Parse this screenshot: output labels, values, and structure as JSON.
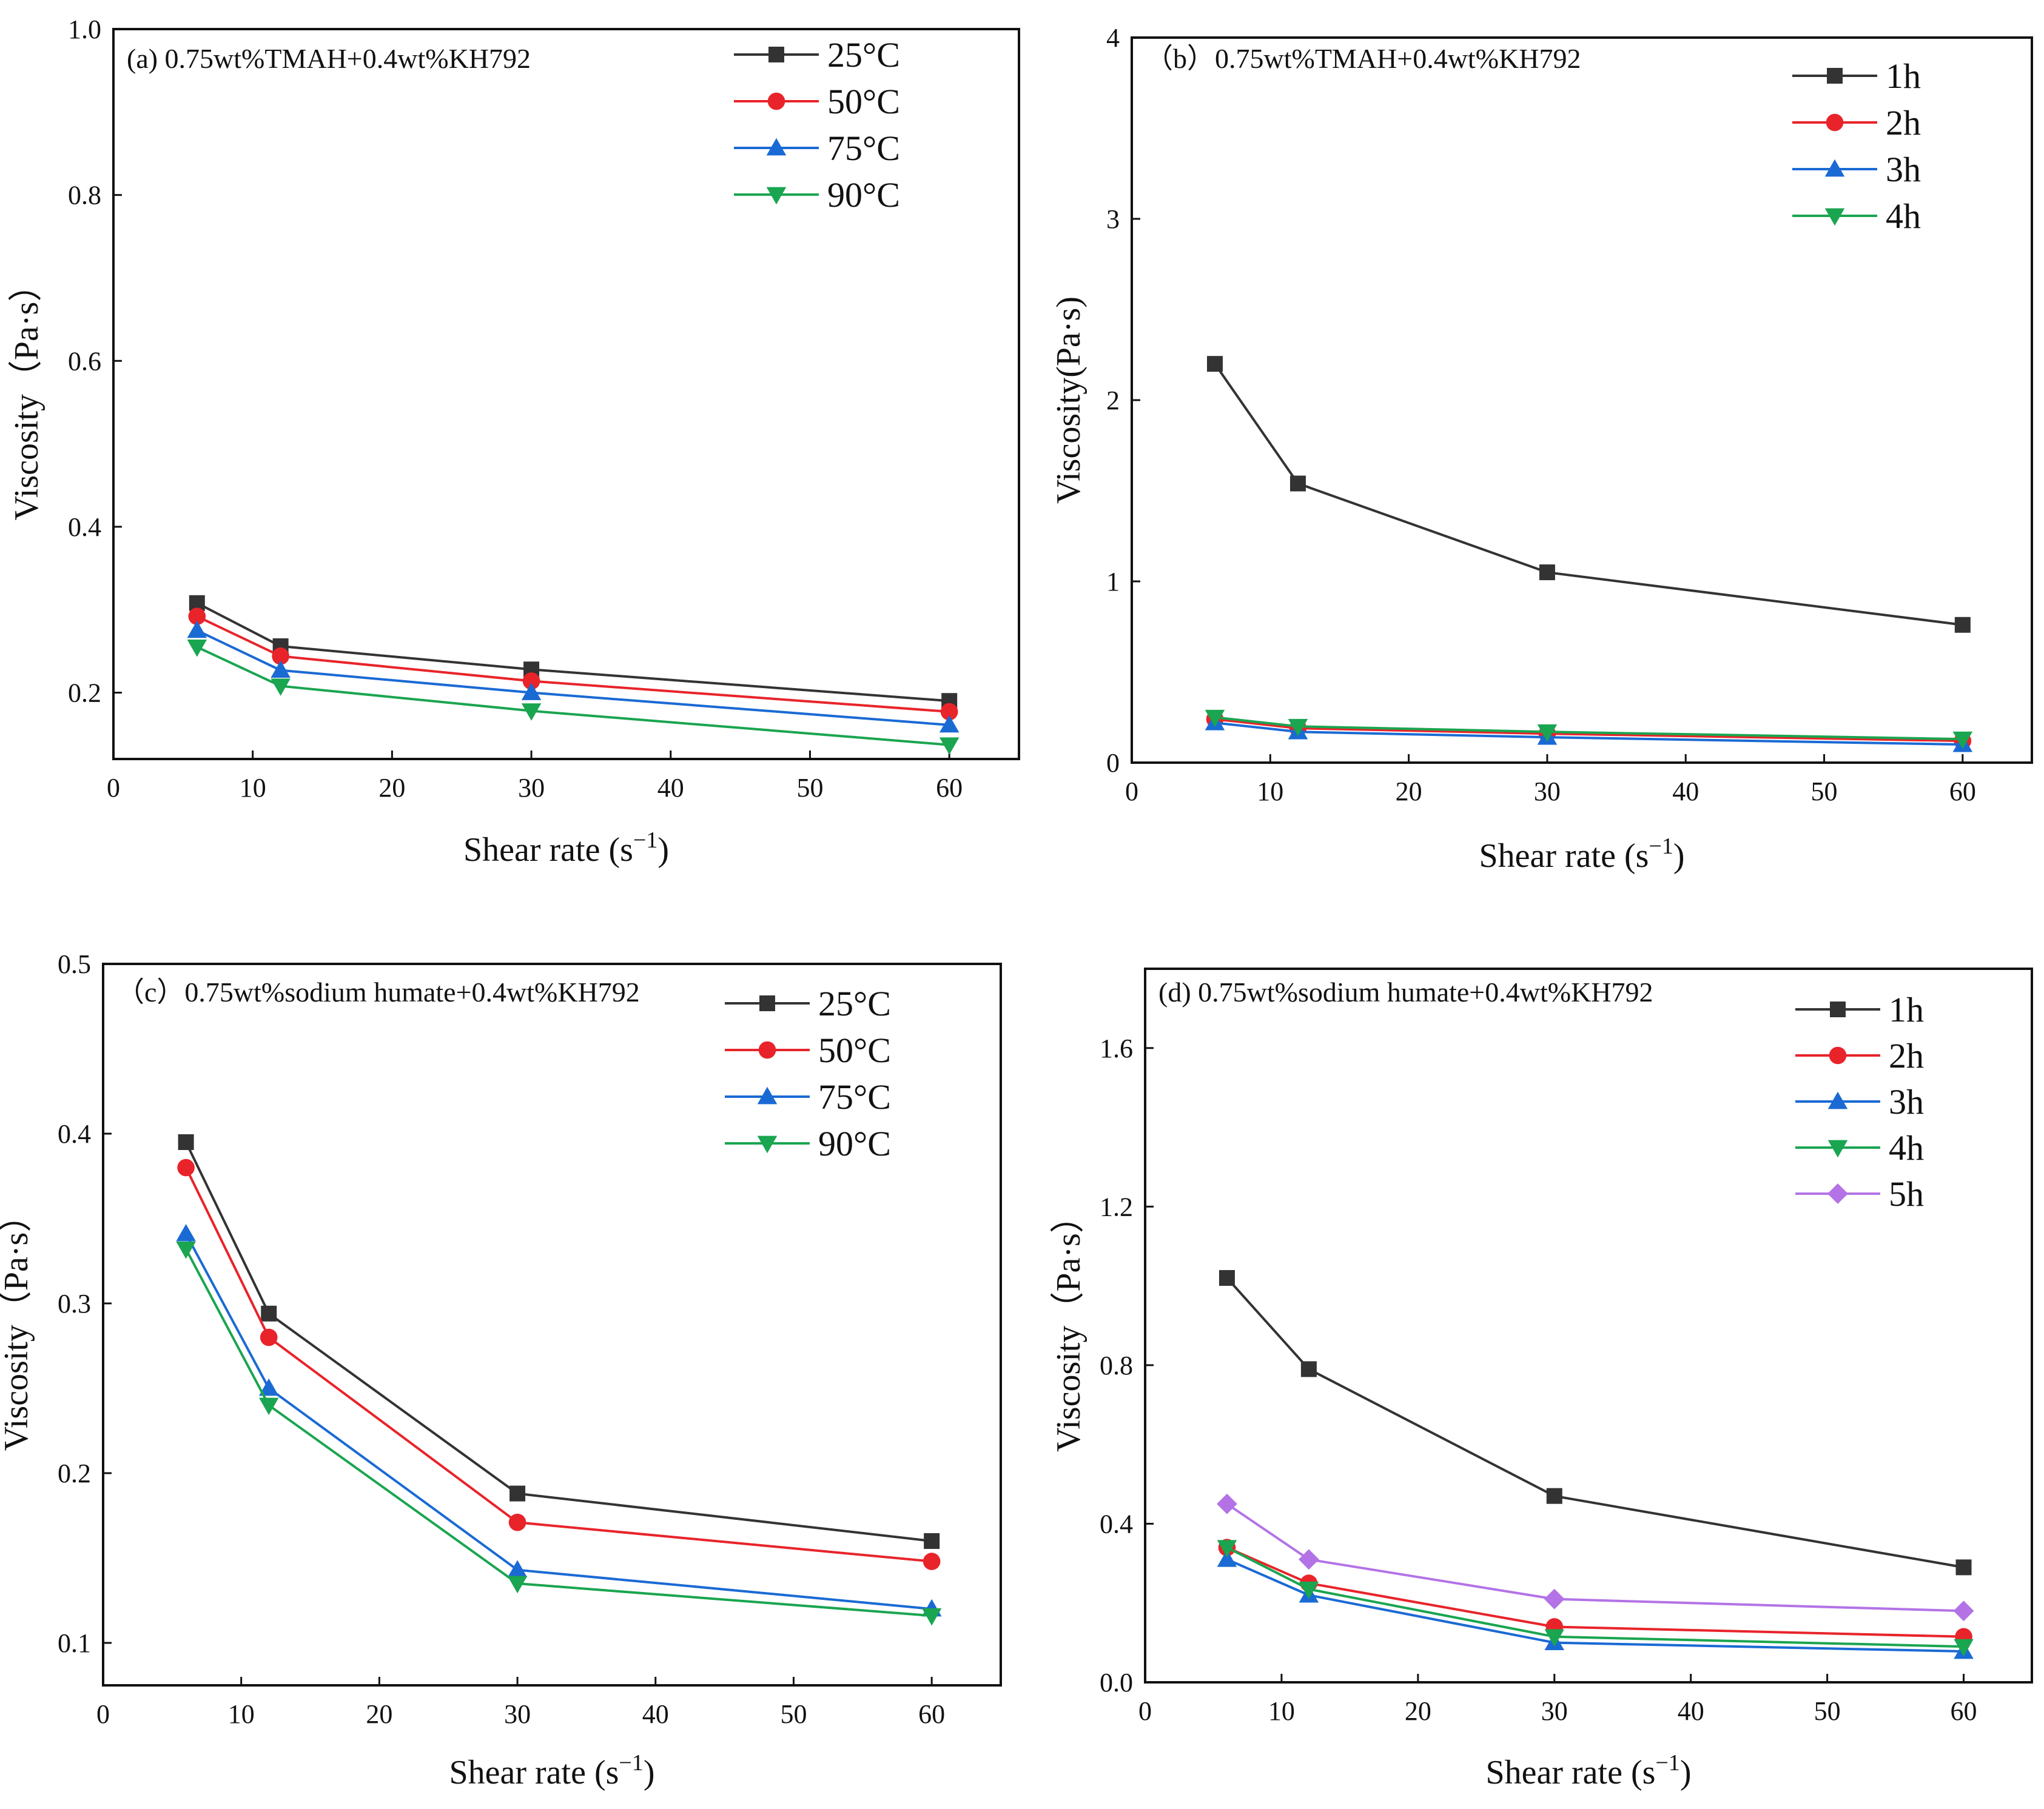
{
  "chart_data": [
    {
      "type": "line",
      "annotation": "(a) 0.75wt%TMAH+0.4wt%KH792",
      "xlabel": "Shear rate (s",
      "xlabel_sup": "−1",
      "xlabel_close": ")",
      "ylabel": "Viscosity（Pa·s）",
      "xlim": [
        0,
        65
      ],
      "ylim": [
        0.12,
        1.0
      ],
      "xticks": [
        0,
        10,
        20,
        30,
        40,
        50,
        60
      ],
      "yticks": [
        0.2,
        0.4,
        0.6,
        0.8,
        1.0
      ],
      "ytick_labels": [
        "0.2",
        "0.4",
        "0.6",
        "0.8",
        "1.0"
      ],
      "x": [
        6,
        12,
        30,
        60
      ],
      "legend_position": "top-right",
      "series": [
        {
          "name": "25°C",
          "color": "#333333",
          "marker": "square",
          "values": [
            0.308,
            0.256,
            0.228,
            0.19
          ]
        },
        {
          "name": "50°C",
          "color": "#e8242a",
          "marker": "circle",
          "values": [
            0.292,
            0.244,
            0.214,
            0.177
          ]
        },
        {
          "name": "75°C",
          "color": "#1a6ad4",
          "marker": "triangle-up",
          "values": [
            0.275,
            0.227,
            0.2,
            0.161
          ]
        },
        {
          "name": "90°C",
          "color": "#1aa550",
          "marker": "triangle-down",
          "values": [
            0.255,
            0.208,
            0.178,
            0.137
          ]
        }
      ]
    },
    {
      "type": "line",
      "annotation": "（b）0.75wt%TMAH+0.4wt%KH792",
      "xlabel": "Shear rate (s",
      "xlabel_sup": "−1",
      "xlabel_close": ")",
      "ylabel": "Viscosity(Pa·s)",
      "xlim": [
        0,
        65
      ],
      "ylim": [
        0,
        4
      ],
      "xticks": [
        0,
        10,
        20,
        30,
        40,
        50,
        60
      ],
      "yticks": [
        0,
        1,
        2,
        3,
        4
      ],
      "ytick_labels": [
        "0",
        "1",
        "2",
        "3",
        "4"
      ],
      "x": [
        6,
        12,
        30,
        60
      ],
      "legend_position": "top-right",
      "series": [
        {
          "name": "1h",
          "color": "#333333",
          "marker": "square",
          "values": [
            2.2,
            1.54,
            1.05,
            0.76
          ]
        },
        {
          "name": "2h",
          "color": "#e8242a",
          "marker": "circle",
          "values": [
            0.24,
            0.19,
            0.16,
            0.12
          ]
        },
        {
          "name": "3h",
          "color": "#1a6ad4",
          "marker": "triangle-up",
          "values": [
            0.22,
            0.17,
            0.14,
            0.1
          ]
        },
        {
          "name": "4h",
          "color": "#1aa550",
          "marker": "triangle-down",
          "values": [
            0.25,
            0.2,
            0.17,
            0.13
          ]
        }
      ]
    },
    {
      "type": "line",
      "annotation": "（c）0.75wt%sodium humate+0.4wt%KH792",
      "xlabel": "Shear rate (s",
      "xlabel_sup": "−1",
      "xlabel_close": ")",
      "ylabel": "Viscosity（Pa·s）",
      "xlim": [
        0,
        65
      ],
      "ylim": [
        0.075,
        0.5
      ],
      "xticks": [
        0,
        10,
        20,
        30,
        40,
        50,
        60
      ],
      "yticks": [
        0.1,
        0.2,
        0.3,
        0.4,
        0.5
      ],
      "ytick_labels": [
        "0.1",
        "0.2",
        "0.3",
        "0.4",
        "0.5"
      ],
      "x": [
        6,
        12,
        30,
        60
      ],
      "legend_position": "top-right",
      "series": [
        {
          "name": "25°C",
          "color": "#333333",
          "marker": "square",
          "values": [
            0.395,
            0.294,
            0.188,
            0.16
          ]
        },
        {
          "name": "50°C",
          "color": "#e8242a",
          "marker": "circle",
          "values": [
            0.38,
            0.28,
            0.171,
            0.148
          ]
        },
        {
          "name": "75°C",
          "color": "#1a6ad4",
          "marker": "triangle-up",
          "values": [
            0.341,
            0.25,
            0.143,
            0.12
          ]
        },
        {
          "name": "90°C",
          "color": "#1aa550",
          "marker": "triangle-down",
          "values": [
            0.332,
            0.24,
            0.135,
            0.116
          ]
        }
      ]
    },
    {
      "type": "line",
      "annotation": "(d) 0.75wt%sodium humate+0.4wt%KH792",
      "xlabel": "Shear rate (s",
      "xlabel_sup": "−1",
      "xlabel_close": ")",
      "ylabel": "Viscosity（Pa·s）",
      "xlim": [
        0,
        65
      ],
      "ylim": [
        0,
        1.8
      ],
      "xticks": [
        0,
        10,
        20,
        30,
        40,
        50,
        60
      ],
      "yticks": [
        0.0,
        0.4,
        0.8,
        1.2,
        1.6
      ],
      "ytick_labels": [
        "0.0",
        "0.4",
        "0.8",
        "1.2",
        "1.6"
      ],
      "x": [
        6,
        12,
        30,
        60
      ],
      "legend_position": "top-right",
      "series": [
        {
          "name": "1h",
          "color": "#333333",
          "marker": "square",
          "values": [
            1.02,
            0.79,
            0.47,
            0.29
          ]
        },
        {
          "name": "2h",
          "color": "#e8242a",
          "marker": "circle",
          "values": [
            0.34,
            0.25,
            0.14,
            0.115
          ]
        },
        {
          "name": "3h",
          "color": "#1a6ad4",
          "marker": "triangle-up",
          "values": [
            0.31,
            0.22,
            0.1,
            0.078
          ]
        },
        {
          "name": "4h",
          "color": "#1aa550",
          "marker": "triangle-down",
          "values": [
            0.34,
            0.235,
            0.115,
            0.09
          ]
        },
        {
          "name": "5h",
          "color": "#b373e6",
          "marker": "diamond",
          "values": [
            0.45,
            0.31,
            0.21,
            0.18
          ]
        }
      ]
    }
  ]
}
